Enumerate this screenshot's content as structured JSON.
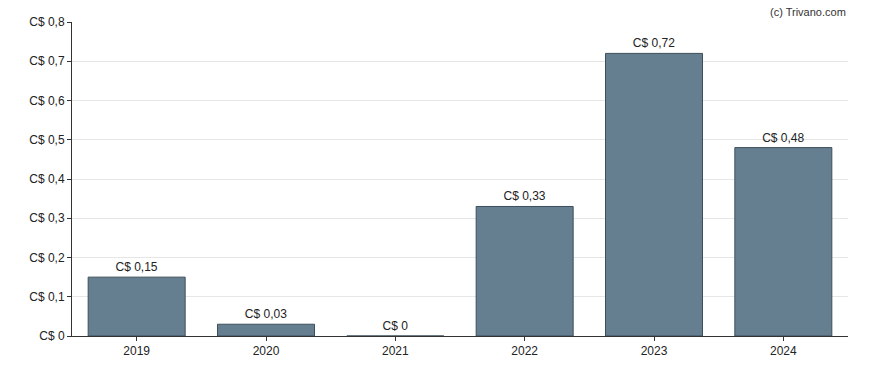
{
  "chart_data": {
    "type": "bar",
    "categories": [
      "2019",
      "2020",
      "2021",
      "2022",
      "2023",
      "2024"
    ],
    "values": [
      0.15,
      0.03,
      0,
      0.33,
      0.72,
      0.48
    ],
    "value_labels": [
      "C$ 0,15",
      "C$ 0,03",
      "C$ 0",
      "C$ 0,33",
      "C$ 0,72",
      "C$ 0,48"
    ],
    "data_labels": true,
    "color": "#657f91",
    "ylim": [
      0,
      0.8
    ],
    "yticks": [
      {
        "value": 0,
        "label": "C$ 0"
      },
      {
        "value": 0.1,
        "label": "C$ 0,1"
      },
      {
        "value": 0.2,
        "label": "C$ 0,2"
      },
      {
        "value": 0.3,
        "label": "C$ 0,3"
      },
      {
        "value": 0.4,
        "label": "C$ 0,4"
      },
      {
        "value": 0.5,
        "label": "C$ 0,5"
      },
      {
        "value": 0.6,
        "label": "C$ 0,6"
      },
      {
        "value": 0.7,
        "label": "C$ 0,7"
      },
      {
        "value": 0.8,
        "label": "C$ 0,8"
      }
    ],
    "grid": true,
    "annotations": [
      "(c) Trivano.com"
    ]
  }
}
